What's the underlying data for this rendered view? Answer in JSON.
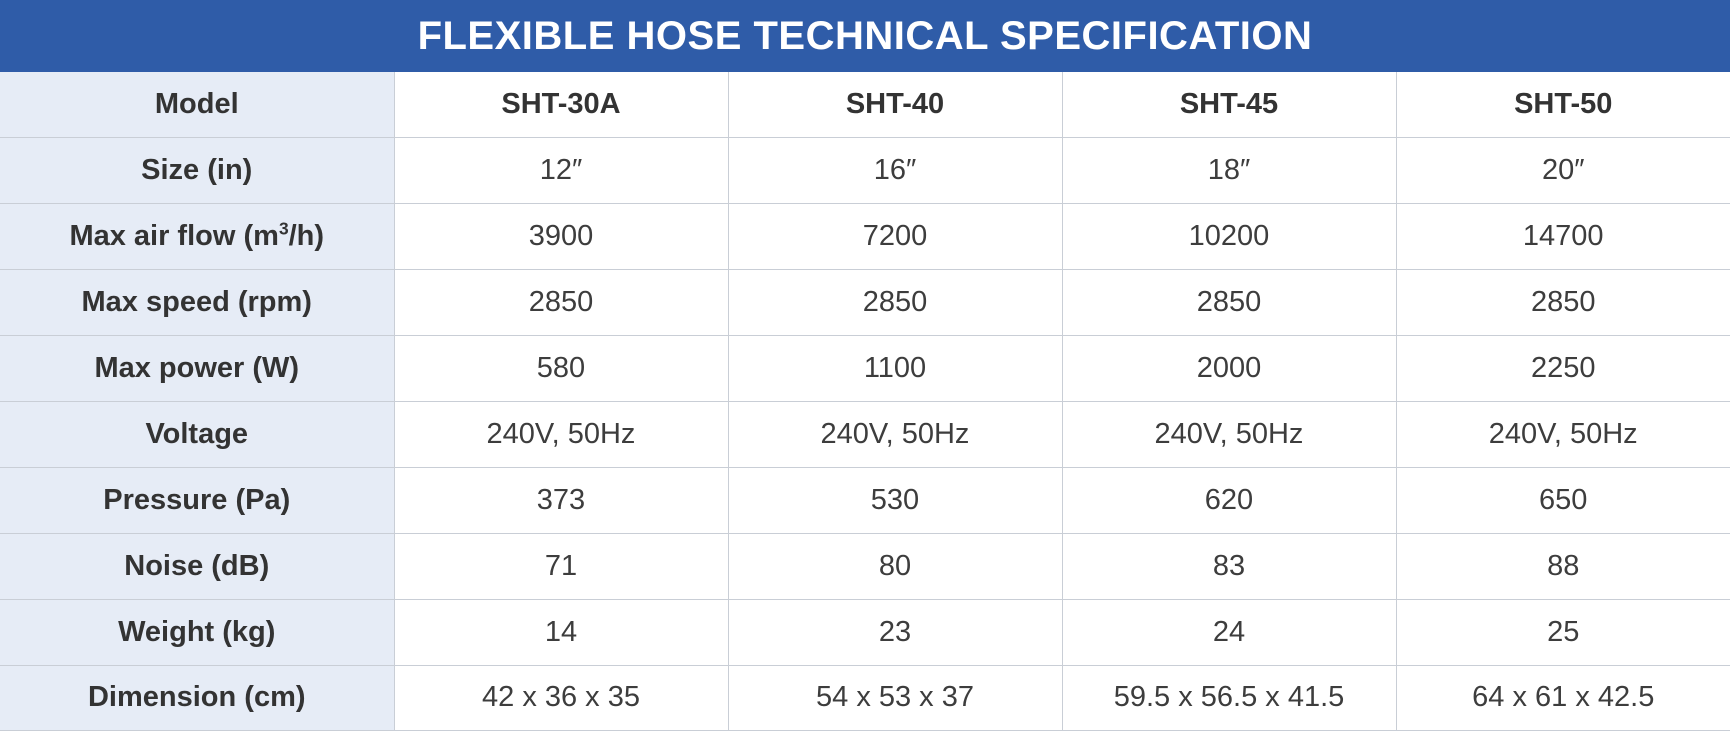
{
  "title": "FLEXIBLE HOSE TECHNICAL SPECIFICATION",
  "colors": {
    "title_bar": "#2f5ca8",
    "label_column": "#e6ecf6",
    "grid_line": "#c9ced6"
  },
  "header": {
    "label": "Model",
    "models": [
      "SHT-30A",
      "SHT-40",
      "SHT-45",
      "SHT-50"
    ]
  },
  "rows": [
    {
      "label": "Size (in)",
      "values": [
        "12″",
        "16″",
        "18″",
        "20″"
      ]
    },
    {
      "label_prefix": "Max air flow (m",
      "label_sup": "3",
      "label_suffix": "/h)",
      "values": [
        "3900",
        "7200",
        "10200",
        "14700"
      ]
    },
    {
      "label": "Max speed (rpm)",
      "values": [
        "2850",
        "2850",
        "2850",
        "2850"
      ]
    },
    {
      "label": "Max power (W)",
      "values": [
        "580",
        "1100",
        "2000",
        "2250"
      ]
    },
    {
      "label": "Voltage",
      "values": [
        "240V, 50Hz",
        "240V, 50Hz",
        "240V, 50Hz",
        "240V, 50Hz"
      ]
    },
    {
      "label": "Pressure (Pa)",
      "values": [
        "373",
        "530",
        "620",
        "650"
      ]
    },
    {
      "label": "Noise (dB)",
      "values": [
        "71",
        "80",
        "83",
        "88"
      ]
    },
    {
      "label": "Weight (kg)",
      "values": [
        "14",
        "23",
        "24",
        "25"
      ]
    },
    {
      "label": "Dimension (cm)",
      "values": [
        "42 x 36 x 35",
        "54 x 53 x 37",
        "59.5 x 56.5 x 41.5",
        "64 x 61 x 42.5"
      ]
    }
  ]
}
